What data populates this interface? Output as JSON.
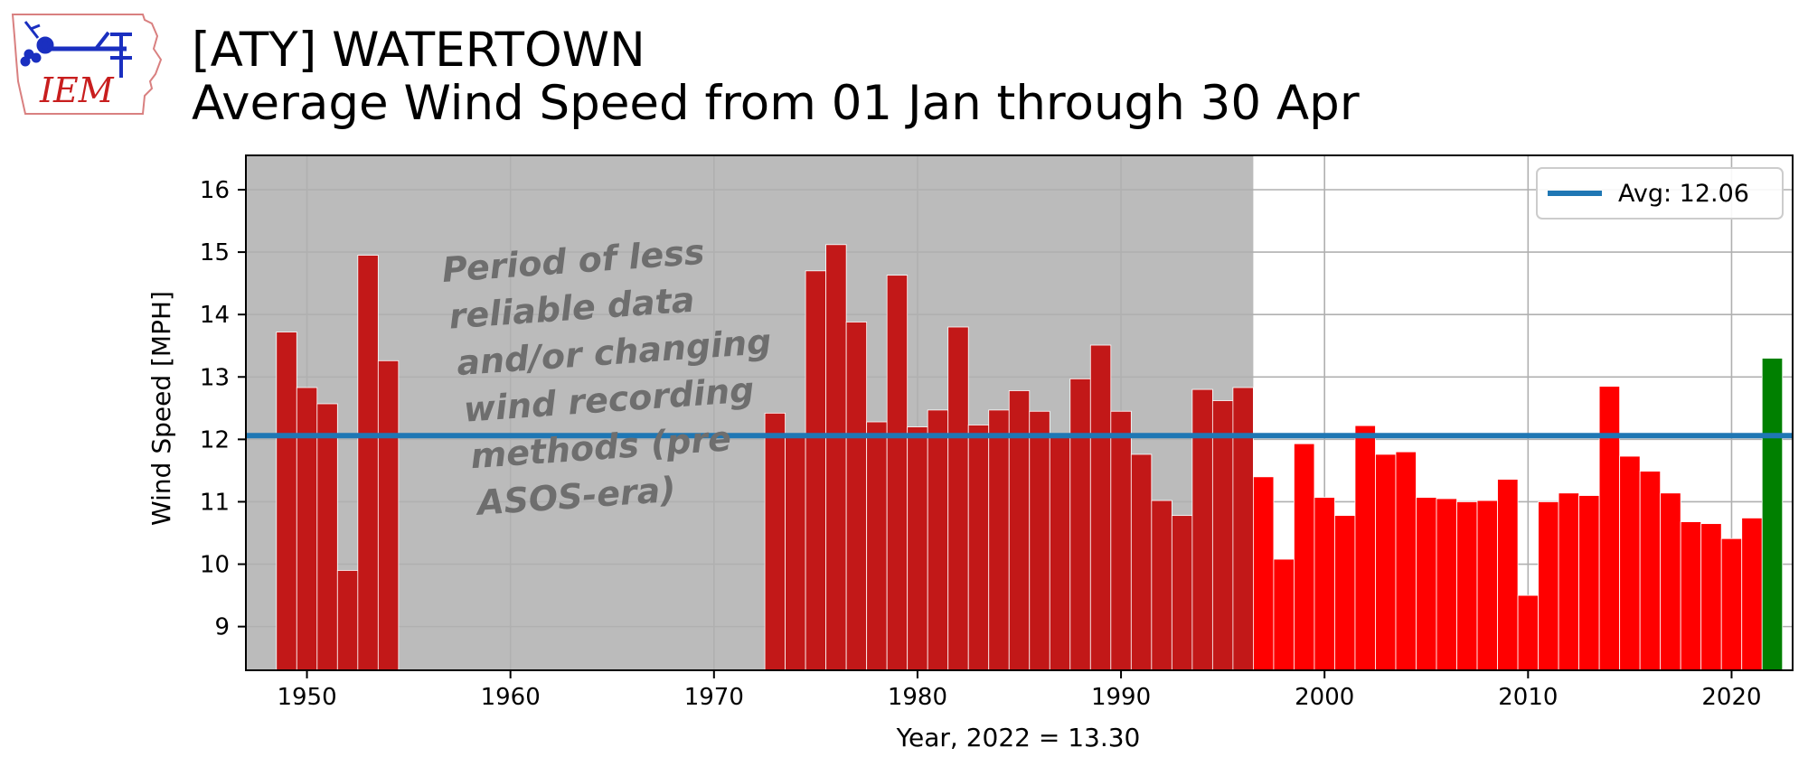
{
  "header": {
    "logo_text": "IEM",
    "title_line1": "[ATY] WATERTOWN",
    "title_line2": "Average Wind Speed from 01 Jan through 30 Apr"
  },
  "chart_data": {
    "type": "bar",
    "xlabel": "Year, 2022 = 13.30",
    "ylabel": "Wind Speed [MPH]",
    "xlim": [
      1947,
      2023
    ],
    "ylim": [
      8.3,
      16.55
    ],
    "xticks": [
      1950,
      1960,
      1970,
      1980,
      1990,
      2000,
      2010,
      2020
    ],
    "yticks": [
      9,
      10,
      11,
      12,
      13,
      14,
      15,
      16
    ],
    "grid": true,
    "average": {
      "label": "Avg: 12.06",
      "value": 12.06,
      "color": "#1f77b4"
    },
    "legend": {
      "placement": "top-right",
      "entries": [
        "Avg: 12.06"
      ]
    },
    "shaded_period": {
      "start": 1947,
      "end": 1996.5,
      "color": "#bbbbbb",
      "annotation": [
        "Period of less",
        "reliable data",
        "and/or changing",
        "wind recording",
        "methods (pre",
        "ASOS-era)"
      ]
    },
    "colors": {
      "pre_asos": "#c21818",
      "asos": "#ff0000",
      "current_year": "#008000"
    },
    "series": [
      {
        "years": [
          1949,
          1950,
          1951,
          1952,
          1953,
          1954,
          1973,
          1974,
          1975,
          1976,
          1977,
          1978,
          1979,
          1980,
          1981,
          1982,
          1983,
          1984,
          1985,
          1986,
          1987,
          1988,
          1989,
          1990,
          1991,
          1992,
          1993,
          1994,
          1995,
          1996,
          1997,
          1998,
          1999,
          2000,
          2001,
          2002,
          2003,
          2004,
          2005,
          2006,
          2007,
          2008,
          2009,
          2010,
          2011,
          2012,
          2013,
          2014,
          2015,
          2016,
          2017,
          2018,
          2019,
          2020,
          2021,
          2022
        ],
        "values": [
          13.72,
          12.83,
          12.57,
          9.9,
          14.95,
          13.26,
          12.42,
          12.05,
          14.7,
          15.12,
          13.88,
          12.28,
          14.63,
          12.2,
          12.47,
          13.8,
          12.23,
          12.47,
          12.78,
          12.45,
          12.08,
          12.97,
          13.51,
          12.45,
          11.76,
          11.02,
          10.78,
          12.8,
          12.62,
          12.83,
          11.4,
          10.08,
          11.93,
          11.07,
          10.78,
          12.22,
          11.76,
          11.8,
          11.07,
          11.05,
          11.0,
          11.02,
          11.36,
          9.5,
          11.0,
          11.14,
          11.1,
          12.85,
          11.73,
          11.49,
          11.14,
          10.68,
          10.65,
          10.41,
          10.74,
          13.3
        ]
      }
    ]
  }
}
